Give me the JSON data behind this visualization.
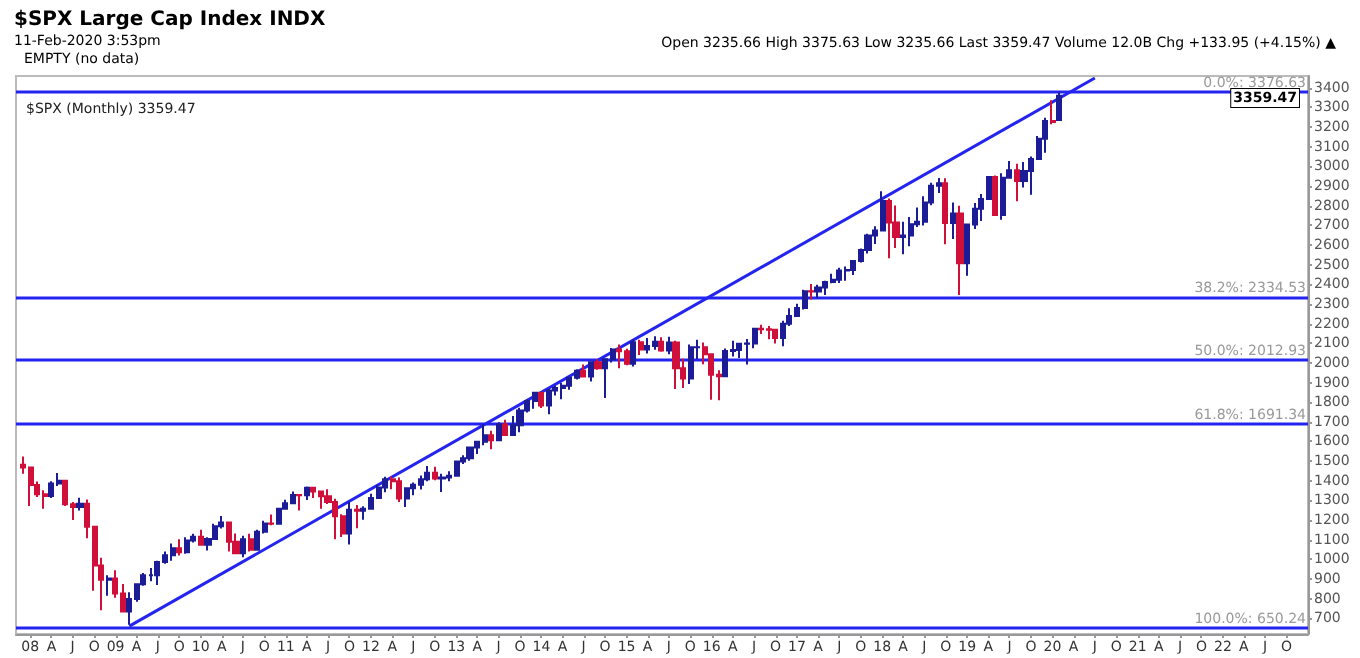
{
  "chart_data": {
    "type": "candlestick",
    "title": "$SPX Large Cap Index INDX",
    "subtitle": "11-Feb-2020 3:53pm",
    "legend_title": "$SPX (Monthly) 3359.47",
    "annotations": [
      "Open 3235.66 High 3375.63 Low 3235.66 Last 3359.47 Volume 12.0B Chg +133.95 (+4.15%) ▲",
      "EMPTY (no data)",
      "3359.47"
    ],
    "grid": false,
    "colors": [
      "#d0103a",
      "#d0103a",
      "#d0103a",
      "#d0103a",
      "#1c1c96",
      "#1c1c96",
      "#d0103a",
      "#d0103a",
      "#1c1c96",
      "#d0103a",
      "#d0103a",
      "#d0103a",
      "#1c1c96",
      "#d0103a",
      "#d0103a",
      "#1c1c96",
      "#1c1c96",
      "#1c1c96",
      "#1c1c96",
      "#1c1c96",
      "#1c1c96",
      "#1c1c96",
      "#d0103a",
      "#1c1c96",
      "#1c1c96",
      "#d0103a",
      "#1c1c96",
      "#1c1c96",
      "#1c1c96",
      "#d0103a",
      "#d0103a",
      "#1c1c96",
      "#d0103a",
      "#1c1c96",
      "#1c1c96",
      "#d0103a",
      "#1c1c96",
      "#1c1c96",
      "#1c1c96",
      "#d0103a",
      "#1c1c96",
      "#d0103a",
      "#d0103a",
      "#d0103a",
      "#d0103a",
      "#d0103a",
      "#1c1c96",
      "#d0103a",
      "#1c1c96",
      "#1c1c96",
      "#1c1c96",
      "#1c1c96",
      "#d0103a",
      "#d0103a",
      "#1c1c96",
      "#1c1c96",
      "#1c1c96",
      "#1c1c96",
      "#d0103a",
      "#1c1c96",
      "#1c1c96",
      "#1c1c96",
      "#1c1c96",
      "#1c1c96",
      "#1c1c96",
      "#1c1c96",
      "#d0103a",
      "#1c1c96",
      "#d0103a",
      "#1c1c96",
      "#1c1c96",
      "#1c1c96",
      "#1c1c96",
      "#d0103a",
      "#1c1c96",
      "#1c1c96",
      "#1c1c96",
      "#1c1c96",
      "#1c1c96",
      "#d0103a",
      "#1c1c96",
      "#d0103a",
      "#1c1c96",
      "#1c1c96",
      "#d0103a",
      "#d0103a",
      "#1c1c96",
      "#d0103a",
      "#1c1c96",
      "#1c1c96",
      "#d0103a",
      "#1c1c96",
      "#d0103a",
      "#d0103a",
      "#1c1c96",
      "#1c1c96",
      "#d0103a",
      "#d0103a",
      "#d0103a",
      "#1c1c96",
      "#1c1c96",
      "#1c1c96",
      "#1c1c96",
      "#1c1c96",
      "#d0103a",
      "#d0103a",
      "#d0103a",
      "#1c1c96",
      "#1c1c96",
      "#1c1c96",
      "#1c1c96",
      "#d0103a",
      "#1c1c96",
      "#1c1c96",
      "#1c1c96",
      "#1c1c96",
      "#1c1c96",
      "#1c1c96",
      "#1c1c96",
      "#1c1c96",
      "#1c1c96",
      "#1c1c96",
      "#d0103a",
      "#d0103a",
      "#1c1c96",
      "#1c1c96",
      "#1c1c96",
      "#1c1c96",
      "#1c1c96",
      "#1c1c96",
      "#d0103a",
      "#1c1c96",
      "#d0103a",
      "#1c1c96",
      "#1c1c96",
      "#1c1c96",
      "#1c1c96",
      "#d0103a",
      "#1c1c96",
      "#1c1c96",
      "#d0103a",
      "#1c1c96",
      "#1c1c96",
      "#1c1c96",
      "#1c1c96",
      "#d0103a",
      "#1c1c96"
    ],
    "x": [
      "2007-12",
      "2008-01",
      "2008-02",
      "2008-03",
      "2008-04",
      "2008-05",
      "2008-06",
      "2008-07",
      "2008-08",
      "2008-09",
      "2008-10",
      "2008-11",
      "2008-12",
      "2009-01",
      "2009-02",
      "2009-03",
      "2009-04",
      "2009-05",
      "2009-06",
      "2009-07",
      "2009-08",
      "2009-09",
      "2009-10",
      "2009-11",
      "2009-12",
      "2010-01",
      "2010-02",
      "2010-03",
      "2010-04",
      "2010-05",
      "2010-06",
      "2010-07",
      "2010-08",
      "2010-09",
      "2010-10",
      "2010-11",
      "2010-12",
      "2011-01",
      "2011-02",
      "2011-03",
      "2011-04",
      "2011-05",
      "2011-06",
      "2011-07",
      "2011-08",
      "2011-09",
      "2011-10",
      "2011-11",
      "2011-12",
      "2012-01",
      "2012-02",
      "2012-03",
      "2012-04",
      "2012-05",
      "2012-06",
      "2012-07",
      "2012-08",
      "2012-09",
      "2012-10",
      "2012-11",
      "2012-12",
      "2013-01",
      "2013-02",
      "2013-03",
      "2013-04",
      "2013-05",
      "2013-06",
      "2013-07",
      "2013-08",
      "2013-09",
      "2013-10",
      "2013-11",
      "2013-12",
      "2014-01",
      "2014-02",
      "2014-03",
      "2014-04",
      "2014-05",
      "2014-06",
      "2014-07",
      "2014-08",
      "2014-09",
      "2014-10",
      "2014-11",
      "2014-12",
      "2015-01",
      "2015-02",
      "2015-03",
      "2015-04",
      "2015-05",
      "2015-06",
      "2015-07",
      "2015-08",
      "2015-09",
      "2015-10",
      "2015-11",
      "2015-12",
      "2016-01",
      "2016-02",
      "2016-03",
      "2016-04",
      "2016-05",
      "2016-06",
      "2016-07",
      "2016-08",
      "2016-09",
      "2016-10",
      "2016-11",
      "2016-12",
      "2017-01",
      "2017-02",
      "2017-03",
      "2017-04",
      "2017-05",
      "2017-06",
      "2017-07",
      "2017-08",
      "2017-09",
      "2017-10",
      "2017-11",
      "2017-12",
      "2018-01",
      "2018-02",
      "2018-03",
      "2018-04",
      "2018-05",
      "2018-06",
      "2018-07",
      "2018-08",
      "2018-09",
      "2018-10",
      "2018-11",
      "2018-12",
      "2019-01",
      "2019-02",
      "2019-03",
      "2019-04",
      "2019-05",
      "2019-06",
      "2019-07",
      "2019-08",
      "2019-09",
      "2019-10",
      "2019-11",
      "2019-12",
      "2020-01",
      "2020-02"
    ],
    "ohlc": [
      [
        1481,
        1523,
        1435,
        1468
      ],
      [
        1468,
        1471,
        1271,
        1378
      ],
      [
        1378,
        1396,
        1317,
        1331
      ],
      [
        1331,
        1352,
        1257,
        1323
      ],
      [
        1323,
        1397,
        1312,
        1386
      ],
      [
        1386,
        1440,
        1373,
        1400
      ],
      [
        1400,
        1405,
        1272,
        1280
      ],
      [
        1280,
        1292,
        1200,
        1267
      ],
      [
        1267,
        1314,
        1248,
        1283
      ],
      [
        1283,
        1304,
        1107,
        1166
      ],
      [
        1166,
        1168,
        840,
        969
      ],
      [
        969,
        1008,
        741,
        896
      ],
      [
        896,
        919,
        815,
        903
      ],
      [
        903,
        944,
        805,
        826
      ],
      [
        826,
        875,
        735,
        735
      ],
      [
        735,
        832,
        667,
        798
      ],
      [
        798,
        878,
        784,
        873
      ],
      [
        873,
        930,
        866,
        919
      ],
      [
        919,
        956,
        889,
        919
      ],
      [
        919,
        993,
        869,
        987
      ],
      [
        987,
        1040,
        978,
        1021
      ],
      [
        1021,
        1081,
        993,
        1057
      ],
      [
        1057,
        1102,
        1020,
        1036
      ],
      [
        1036,
        1113,
        1029,
        1096
      ],
      [
        1096,
        1130,
        1086,
        1115
      ],
      [
        1115,
        1150,
        1071,
        1074
      ],
      [
        1074,
        1113,
        1045,
        1104
      ],
      [
        1104,
        1181,
        1102,
        1169
      ],
      [
        1169,
        1220,
        1157,
        1187
      ],
      [
        1187,
        1190,
        1040,
        1089
      ],
      [
        1089,
        1131,
        1029,
        1031
      ],
      [
        1031,
        1120,
        1011,
        1102
      ],
      [
        1102,
        1130,
        1040,
        1049
      ],
      [
        1049,
        1151,
        1049,
        1141
      ],
      [
        1141,
        1196,
        1131,
        1183
      ],
      [
        1183,
        1228,
        1174,
        1181
      ],
      [
        1181,
        1263,
        1181,
        1258
      ],
      [
        1258,
        1303,
        1257,
        1286
      ],
      [
        1286,
        1345,
        1284,
        1327
      ],
      [
        1327,
        1333,
        1249,
        1326
      ],
      [
        1326,
        1371,
        1302,
        1364
      ],
      [
        1364,
        1370,
        1312,
        1345
      ],
      [
        1345,
        1346,
        1258,
        1321
      ],
      [
        1321,
        1357,
        1282,
        1292
      ],
      [
        1292,
        1308,
        1102,
        1219
      ],
      [
        1219,
        1230,
        1114,
        1131
      ],
      [
        1131,
        1292,
        1075,
        1253
      ],
      [
        1253,
        1277,
        1158,
        1247
      ],
      [
        1247,
        1270,
        1202,
        1258
      ],
      [
        1258,
        1334,
        1257,
        1312
      ],
      [
        1312,
        1378,
        1312,
        1366
      ],
      [
        1366,
        1420,
        1341,
        1408
      ],
      [
        1408,
        1422,
        1357,
        1398
      ],
      [
        1398,
        1416,
        1292,
        1310
      ],
      [
        1310,
        1364,
        1267,
        1362
      ],
      [
        1362,
        1391,
        1326,
        1379
      ],
      [
        1379,
        1427,
        1355,
        1407
      ],
      [
        1407,
        1475,
        1397,
        1441
      ],
      [
        1441,
        1471,
        1403,
        1412
      ],
      [
        1412,
        1435,
        1343,
        1416
      ],
      [
        1416,
        1448,
        1398,
        1426
      ],
      [
        1426,
        1503,
        1426,
        1498
      ],
      [
        1498,
        1530,
        1485,
        1515
      ],
      [
        1515,
        1570,
        1502,
        1569
      ],
      [
        1569,
        1598,
        1536,
        1598
      ],
      [
        1598,
        1687,
        1581,
        1631
      ],
      [
        1631,
        1654,
        1560,
        1606
      ],
      [
        1606,
        1698,
        1605,
        1686
      ],
      [
        1686,
        1710,
        1633,
        1633
      ],
      [
        1633,
        1730,
        1633,
        1682
      ],
      [
        1682,
        1772,
        1647,
        1757
      ],
      [
        1757,
        1814,
        1747,
        1806
      ],
      [
        1806,
        1849,
        1767,
        1848
      ],
      [
        1848,
        1850,
        1770,
        1783
      ],
      [
        1783,
        1867,
        1738,
        1859
      ],
      [
        1859,
        1884,
        1834,
        1872
      ],
      [
        1872,
        1897,
        1815,
        1884
      ],
      [
        1884,
        1925,
        1863,
        1924
      ],
      [
        1924,
        1968,
        1915,
        1960
      ],
      [
        1960,
        1992,
        1930,
        1931
      ],
      [
        1931,
        2005,
        1905,
        2003
      ],
      [
        2003,
        2019,
        1965,
        1972
      ],
      [
        1972,
        2019,
        1821,
        2018
      ],
      [
        2018,
        2076,
        2002,
        2068
      ],
      [
        2068,
        2094,
        1973,
        2059
      ],
      [
        2059,
        2072,
        1988,
        1995
      ],
      [
        1995,
        2119,
        1981,
        2105
      ],
      [
        2105,
        2118,
        2040,
        2068
      ],
      [
        2068,
        2126,
        2048,
        2086
      ],
      [
        2086,
        2135,
        2067,
        2107
      ],
      [
        2107,
        2130,
        2056,
        2063
      ],
      [
        2063,
        2133,
        2044,
        2104
      ],
      [
        2104,
        2113,
        1867,
        1972
      ],
      [
        1972,
        2021,
        1872,
        1920
      ],
      [
        1920,
        2094,
        1893,
        2079
      ],
      [
        2079,
        2117,
        2020,
        2080
      ],
      [
        2080,
        2104,
        1993,
        2044
      ],
      [
        2044,
        2044,
        1812,
        1940
      ],
      [
        1940,
        1963,
        1810,
        1932
      ],
      [
        1932,
        2073,
        1932,
        2060
      ],
      [
        2060,
        2112,
        2033,
        2065
      ],
      [
        2065,
        2100,
        2025,
        2097
      ],
      [
        2097,
        2121,
        1992,
        2099
      ],
      [
        2099,
        2178,
        2074,
        2174
      ],
      [
        2174,
        2194,
        2147,
        2171
      ],
      [
        2171,
        2188,
        2120,
        2168
      ],
      [
        2168,
        2170,
        2098,
        2126
      ],
      [
        2126,
        2214,
        2084,
        2199
      ],
      [
        2199,
        2278,
        2188,
        2239
      ],
      [
        2239,
        2301,
        2233,
        2279
      ],
      [
        2279,
        2372,
        2271,
        2364
      ],
      [
        2364,
        2401,
        2322,
        2363
      ],
      [
        2363,
        2398,
        2329,
        2384
      ],
      [
        2384,
        2418,
        2345,
        2412
      ],
      [
        2412,
        2454,
        2405,
        2423
      ],
      [
        2423,
        2484,
        2407,
        2470
      ],
      [
        2470,
        2491,
        2418,
        2472
      ],
      [
        2472,
        2519,
        2447,
        2519
      ],
      [
        2519,
        2582,
        2511,
        2575
      ],
      [
        2575,
        2657,
        2557,
        2648
      ],
      [
        2648,
        2695,
        2605,
        2674
      ],
      [
        2674,
        2873,
        2672,
        2824
      ],
      [
        2824,
        2836,
        2533,
        2714
      ],
      [
        2714,
        2801,
        2585,
        2641
      ],
      [
        2641,
        2718,
        2553,
        2648
      ],
      [
        2648,
        2742,
        2594,
        2705
      ],
      [
        2705,
        2791,
        2692,
        2718
      ],
      [
        2718,
        2848,
        2699,
        2816
      ],
      [
        2816,
        2917,
        2802,
        2902
      ],
      [
        2902,
        2941,
        2864,
        2914
      ],
      [
        2914,
        2940,
        2604,
        2712
      ],
      [
        2712,
        2816,
        2631,
        2760
      ],
      [
        2760,
        2800,
        2346,
        2507
      ],
      [
        2507,
        2708,
        2443,
        2704
      ],
      [
        2704,
        2814,
        2681,
        2784
      ],
      [
        2784,
        2860,
        2722,
        2834
      ],
      [
        2834,
        2949,
        2830,
        2946
      ],
      [
        2946,
        2954,
        2750,
        2752
      ],
      [
        2752,
        2965,
        2729,
        2942
      ],
      [
        2942,
        3028,
        2940,
        2980
      ],
      [
        2980,
        3014,
        2822,
        2926
      ],
      [
        2926,
        3022,
        2892,
        2977
      ],
      [
        2977,
        3050,
        2855,
        3038
      ],
      [
        3038,
        3154,
        3037,
        3141
      ],
      [
        3141,
        3248,
        3070,
        3231
      ],
      [
        3231,
        3337,
        3214,
        3226
      ],
      [
        3235.66,
        3375.63,
        3235.66,
        3359.47
      ]
    ],
    "series": [
      {
        "type": "line",
        "x": [
          "2009-03",
          "2020-07"
        ],
        "values": [
          660,
          3450
        ],
        "color": "#2424f0"
      }
    ],
    "ref_lines": [
      {
        "axis": "y",
        "value": 3376.63,
        "label": "0.0%: 3376.63",
        "color": "#2424f0"
      },
      {
        "axis": "y",
        "value": 2334.53,
        "label": "38.2%: 2334.53",
        "color": "#2424f0"
      },
      {
        "axis": "y",
        "value": 2012.93,
        "label": "50.0%: 2012.93",
        "color": "#2424f0"
      },
      {
        "axis": "y",
        "value": 1691.34,
        "label": "61.8%: 1691.34",
        "color": "#2424f0"
      },
      {
        "axis": "y",
        "value": 650.24,
        "label": "100.0%: 650.24",
        "color": "#2424f0"
      }
    ],
    "xlim": [
      "2007-11",
      "2023-01"
    ],
    "ylim": [
      620,
      3460
    ],
    "yticks": [
      700,
      800,
      900,
      1000,
      1100,
      1200,
      1300,
      1400,
      1500,
      1600,
      1700,
      1800,
      1900,
      2000,
      2100,
      2200,
      2300,
      2400,
      2500,
      2600,
      2700,
      2800,
      2900,
      3000,
      3100,
      3200,
      3300,
      3400
    ],
    "xticks": [
      {
        "value": "2008-01",
        "label": "08"
      },
      {
        "value": "2008-04",
        "label": "A"
      },
      {
        "value": "2008-07",
        "label": "J"
      },
      {
        "value": "2008-10",
        "label": "O"
      },
      {
        "value": "2009-01",
        "label": "09"
      },
      {
        "value": "2009-04",
        "label": "A"
      },
      {
        "value": "2009-07",
        "label": "J"
      },
      {
        "value": "2009-10",
        "label": "O"
      },
      {
        "value": "2010-01",
        "label": "10"
      },
      {
        "value": "2010-04",
        "label": "A"
      },
      {
        "value": "2010-07",
        "label": "J"
      },
      {
        "value": "2010-10",
        "label": "O"
      },
      {
        "value": "2011-01",
        "label": "11"
      },
      {
        "value": "2011-04",
        "label": "A"
      },
      {
        "value": "2011-07",
        "label": "J"
      },
      {
        "value": "2011-10",
        "label": "O"
      },
      {
        "value": "2012-01",
        "label": "12"
      },
      {
        "value": "2012-04",
        "label": "A"
      },
      {
        "value": "2012-07",
        "label": "J"
      },
      {
        "value": "2012-10",
        "label": "O"
      },
      {
        "value": "2013-01",
        "label": "13"
      },
      {
        "value": "2013-04",
        "label": "A"
      },
      {
        "value": "2013-07",
        "label": "J"
      },
      {
        "value": "2013-10",
        "label": "O"
      },
      {
        "value": "2014-01",
        "label": "14"
      },
      {
        "value": "2014-04",
        "label": "A"
      },
      {
        "value": "2014-07",
        "label": "J"
      },
      {
        "value": "2014-10",
        "label": "O"
      },
      {
        "value": "2015-01",
        "label": "15"
      },
      {
        "value": "2015-04",
        "label": "A"
      },
      {
        "value": "2015-07",
        "label": "J"
      },
      {
        "value": "2015-10",
        "label": "O"
      },
      {
        "value": "2016-01",
        "label": "16"
      },
      {
        "value": "2016-04",
        "label": "A"
      },
      {
        "value": "2016-07",
        "label": "J"
      },
      {
        "value": "2016-10",
        "label": "O"
      },
      {
        "value": "2017-01",
        "label": "17"
      },
      {
        "value": "2017-04",
        "label": "A"
      },
      {
        "value": "2017-07",
        "label": "J"
      },
      {
        "value": "2017-10",
        "label": "O"
      },
      {
        "value": "2018-01",
        "label": "18"
      },
      {
        "value": "2018-04",
        "label": "A"
      },
      {
        "value": "2018-07",
        "label": "J"
      },
      {
        "value": "2018-10",
        "label": "O"
      },
      {
        "value": "2019-01",
        "label": "19"
      },
      {
        "value": "2019-04",
        "label": "A"
      },
      {
        "value": "2019-07",
        "label": "J"
      },
      {
        "value": "2019-10",
        "label": "O"
      },
      {
        "value": "2020-01",
        "label": "20"
      },
      {
        "value": "2020-04",
        "label": "A"
      },
      {
        "value": "2020-07",
        "label": "J"
      },
      {
        "value": "2020-10",
        "label": "O"
      },
      {
        "value": "2021-01",
        "label": "21"
      },
      {
        "value": "2021-04",
        "label": "A"
      },
      {
        "value": "2021-07",
        "label": "J"
      },
      {
        "value": "2021-10",
        "label": "O"
      },
      {
        "value": "2022-01",
        "label": "22"
      },
      {
        "value": "2022-04",
        "label": "A"
      },
      {
        "value": "2022-07",
        "label": "J"
      },
      {
        "value": "2022-10",
        "label": "O"
      }
    ]
  }
}
